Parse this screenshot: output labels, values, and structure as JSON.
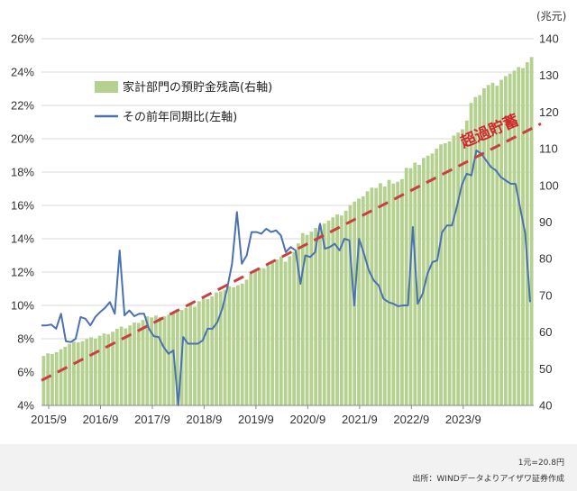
{
  "chart_data": {
    "type": "bar+line",
    "series": [
      {
        "name": "家計部門の預貯金残高(右軸)",
        "axis": "right",
        "type": "bar",
        "color": "#b5d18f",
        "values": [
          53.5,
          54.2,
          54.0,
          54.5,
          55.3,
          56.0,
          56.8,
          57.4,
          57.2,
          57.5,
          58.1,
          58.6,
          58.2,
          59.0,
          59.6,
          59.4,
          60.1,
          60.9,
          61.5,
          61.0,
          61.8,
          62.6,
          62.5,
          63.3,
          64.3,
          64.0,
          64.5,
          64.1,
          64.3,
          64.8,
          65.5,
          66.2,
          66.0,
          66.6,
          67.5,
          66.9,
          68.4,
          69.2,
          69.0,
          69.7,
          70.8,
          71.1,
          71.5,
          72.5,
          72.2,
          72.8,
          73.2,
          74.3,
          75.9,
          76.8,
          77.5,
          77.4,
          78.2,
          79.3,
          79.8,
          80.6,
          79.2,
          80.7,
          81.9,
          84.2,
          87.0,
          86.5,
          87.4,
          88.4,
          89.2,
          89.6,
          90.4,
          91.3,
          92.1,
          91.8,
          93.1,
          94.6,
          95.6,
          96.4,
          97.0,
          98.4,
          99.4,
          99.3,
          100.6,
          99.7,
          101.5,
          100.5,
          101.0,
          101.7,
          104.8,
          104.7,
          106.2,
          105.6,
          107.5,
          108.1,
          108.7,
          110.0,
          111.2,
          111.5,
          112.0,
          113.6,
          114.4,
          115.3,
          117.7,
          122.5,
          124.1,
          124.6,
          126.5,
          127.4,
          128.0,
          127.2,
          128.8,
          129.8,
          130.5,
          131.3,
          132.3,
          132.0,
          133.6,
          135.0
        ]
      },
      {
        "name": "その前年同期比(左軸)",
        "axis": "left",
        "type": "line",
        "color": "#4a72b0",
        "values": [
          8.8,
          8.8,
          8.85,
          8.6,
          9.5,
          7.85,
          7.8,
          8.0,
          9.3,
          9.2,
          8.8,
          9.3,
          9.6,
          9.85,
          10.2,
          9.5,
          13.3,
          9.4,
          9.7,
          9.35,
          9.5,
          9.5,
          8.6,
          8.15,
          8.1,
          7.5,
          7.1,
          7.3,
          4.0,
          8.1,
          7.7,
          7.7,
          7.7,
          7.9,
          8.6,
          8.6,
          9.0,
          9.8,
          11.0,
          12.5,
          15.6,
          12.5,
          13.0,
          14.4,
          14.4,
          14.3,
          14.6,
          14.4,
          14.5,
          14.2,
          13.2,
          13.5,
          13.3,
          11.3,
          13.0,
          12.9,
          13.2,
          14.9,
          13.4,
          13.5,
          13.7,
          13.3,
          14.0,
          13.9,
          10.0,
          14.0,
          13.1,
          12.1,
          11.5,
          11.2,
          10.4,
          10.2,
          10.1,
          9.95,
          10.0,
          10.0,
          14.7,
          10.1,
          10.7,
          11.9,
          12.6,
          12.7,
          14.4,
          14.8,
          14.8,
          15.9,
          17.2,
          17.9,
          17.8,
          19.3,
          19.1,
          18.7,
          18.3,
          18.1,
          17.7,
          17.5,
          17.3,
          17.3,
          15.8,
          14.3,
          10.2
        ]
      }
    ],
    "x_tick_labels": [
      "2015/9",
      "2016/9",
      "2017/9",
      "2018/9",
      "2019/9",
      "2020/9",
      "2021/9",
      "2022/9",
      "2023/9"
    ],
    "left_axis": {
      "ylim": [
        4,
        26
      ],
      "ticks": [
        4,
        6,
        8,
        10,
        12,
        14,
        16,
        18,
        20,
        22,
        24,
        26
      ],
      "labels": [
        "4%",
        "6%",
        "8%",
        "10%",
        "12%",
        "14%",
        "16%",
        "18%",
        "20%",
        "22%",
        "24%",
        "26%"
      ]
    },
    "right_axis": {
      "unit": "(兆元)",
      "ylim": [
        40,
        140
      ],
      "ticks": [
        40,
        50,
        60,
        70,
        80,
        90,
        100,
        110,
        120,
        130,
        140
      ],
      "labels": [
        "40",
        "50",
        "60",
        "70",
        "80",
        "90",
        "100",
        "110",
        "120",
        "130",
        "140"
      ]
    },
    "trend_line": {
      "color": "#c8403f",
      "style": "dashed",
      "from_left_value": 5.5,
      "to_left_value": 20.9
    },
    "annotation": {
      "text": "超過貯蓄",
      "color": "#d0282e"
    },
    "legend": {
      "position": "top-left"
    },
    "grid": "horizontal"
  },
  "footer": {
    "rate": "1元=20.8円",
    "source": "出所：WINDデータよりアイザワ証券作成"
  }
}
